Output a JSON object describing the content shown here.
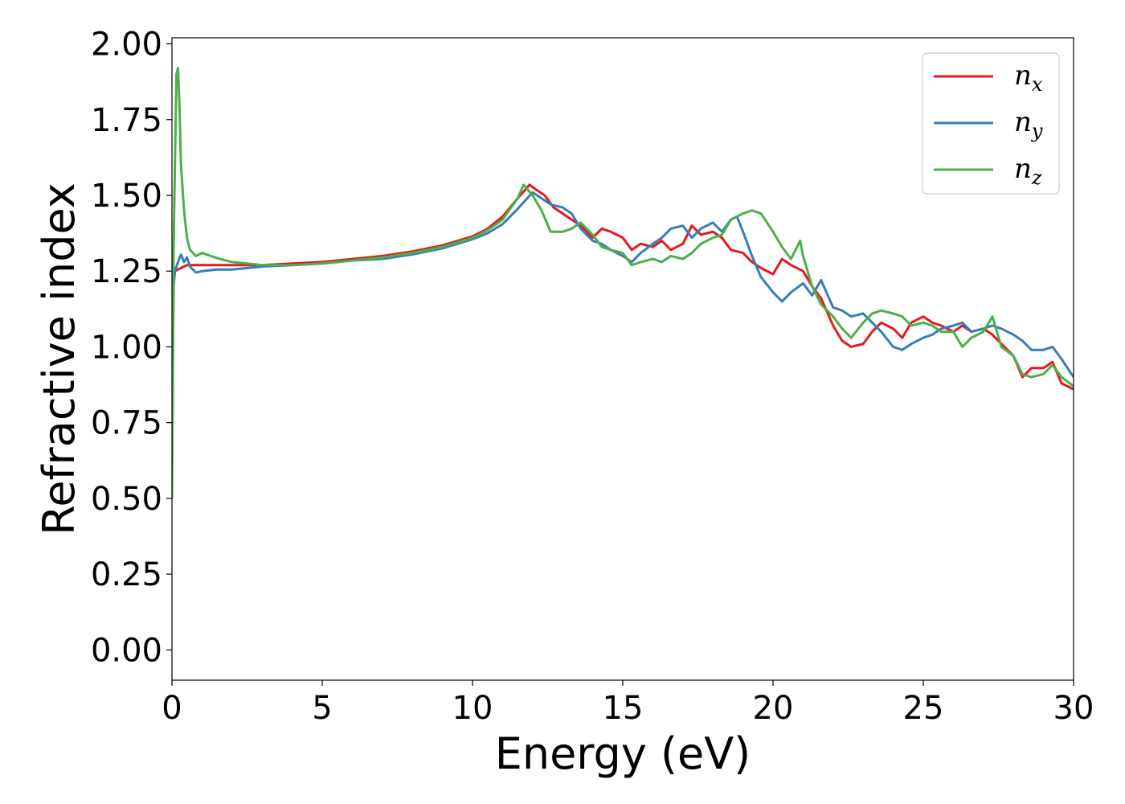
{
  "chart_data": {
    "type": "line",
    "xlabel": "Energy (eV)",
    "ylabel": "Refractive index",
    "xlim": [
      0,
      30
    ],
    "ylim": [
      -0.1,
      2.02
    ],
    "xticks": [
      0,
      5,
      10,
      15,
      20,
      25,
      30
    ],
    "xtick_labels": [
      "0",
      "5",
      "10",
      "15",
      "20",
      "25",
      "30"
    ],
    "yticks": [
      0,
      0.25,
      0.5,
      0.75,
      1.0,
      1.25,
      1.5,
      1.75,
      2.0
    ],
    "ytick_labels": [
      "0.00",
      "0.25",
      "0.50",
      "0.75",
      "1.00",
      "1.25",
      "1.50",
      "1.75",
      "2.00"
    ],
    "grid": false,
    "legend_position": "top-right",
    "series": [
      {
        "name": "n",
        "subscript": "x",
        "color": "#e41a1c",
        "x": [
          0,
          0.05,
          0.1,
          0.3,
          0.5,
          1,
          2,
          3,
          4,
          5,
          6,
          7,
          8,
          9,
          10,
          10.5,
          11,
          11.5,
          11.9,
          12.1,
          12.4,
          12.7,
          13,
          13.3,
          13.6,
          14,
          14.3,
          14.6,
          15,
          15.3,
          15.6,
          16,
          16.3,
          16.6,
          17,
          17.3,
          17.6,
          18,
          18.3,
          18.6,
          19,
          19.3,
          19.6,
          20,
          20.3,
          20.6,
          21,
          21.3,
          21.6,
          22,
          22.3,
          22.6,
          23,
          23.3,
          23.6,
          24,
          24.3,
          24.6,
          25,
          25.3,
          25.6,
          26,
          26.3,
          26.6,
          27,
          27.3,
          27.6,
          28,
          28.3,
          28.6,
          29,
          29.3,
          29.6,
          30
        ],
        "y": [
          0.6,
          1.2,
          1.25,
          1.26,
          1.27,
          1.27,
          1.27,
          1.27,
          1.275,
          1.28,
          1.29,
          1.3,
          1.315,
          1.335,
          1.365,
          1.39,
          1.43,
          1.49,
          1.535,
          1.52,
          1.5,
          1.46,
          1.44,
          1.42,
          1.4,
          1.36,
          1.39,
          1.38,
          1.36,
          1.32,
          1.34,
          1.33,
          1.35,
          1.32,
          1.34,
          1.4,
          1.37,
          1.38,
          1.36,
          1.32,
          1.31,
          1.28,
          1.26,
          1.24,
          1.29,
          1.27,
          1.25,
          1.2,
          1.16,
          1.07,
          1.02,
          1.0,
          1.01,
          1.05,
          1.08,
          1.06,
          1.03,
          1.08,
          1.1,
          1.08,
          1.07,
          1.05,
          1.07,
          1.05,
          1.06,
          1.04,
          1.01,
          0.97,
          0.9,
          0.93,
          0.93,
          0.95,
          0.88,
          0.86
        ]
      },
      {
        "name": "n",
        "subscript": "y",
        "color": "#377eb8",
        "x": [
          0,
          0.05,
          0.1,
          0.2,
          0.3,
          0.4,
          0.5,
          0.6,
          0.8,
          1,
          1.5,
          2,
          2.5,
          3,
          4,
          5,
          6,
          7,
          8,
          9,
          10,
          10.5,
          11,
          11.5,
          12,
          12.3,
          12.6,
          13,
          13.3,
          13.6,
          14,
          14.3,
          14.6,
          15,
          15.3,
          15.6,
          16,
          16.3,
          16.6,
          17,
          17.3,
          17.6,
          18,
          18.3,
          18.6,
          18.8,
          19,
          19.3,
          19.6,
          20,
          20.3,
          20.6,
          21,
          21.3,
          21.6,
          22,
          22.3,
          22.6,
          23,
          23.3,
          23.6,
          24,
          24.3,
          24.6,
          25,
          25.3,
          25.6,
          26,
          26.3,
          26.6,
          27,
          27.3,
          27.6,
          28,
          28.3,
          28.6,
          29,
          29.3,
          29.6,
          30
        ],
        "y": [
          0.6,
          1.2,
          1.25,
          1.28,
          1.305,
          1.28,
          1.295,
          1.265,
          1.245,
          1.25,
          1.255,
          1.255,
          1.26,
          1.265,
          1.27,
          1.275,
          1.285,
          1.29,
          1.305,
          1.325,
          1.355,
          1.375,
          1.405,
          1.455,
          1.51,
          1.49,
          1.47,
          1.46,
          1.44,
          1.39,
          1.35,
          1.34,
          1.32,
          1.3,
          1.28,
          1.31,
          1.34,
          1.36,
          1.39,
          1.4,
          1.36,
          1.39,
          1.41,
          1.38,
          1.42,
          1.43,
          1.38,
          1.3,
          1.23,
          1.18,
          1.15,
          1.18,
          1.21,
          1.17,
          1.22,
          1.13,
          1.12,
          1.1,
          1.11,
          1.08,
          1.05,
          1.0,
          0.99,
          1.01,
          1.03,
          1.04,
          1.06,
          1.07,
          1.08,
          1.05,
          1.06,
          1.07,
          1.06,
          1.04,
          1.02,
          0.99,
          0.99,
          1.0,
          0.96,
          0.9
        ]
      },
      {
        "name": "n",
        "subscript": "z",
        "color": "#4daf4a",
        "x": [
          0,
          0.05,
          0.1,
          0.15,
          0.2,
          0.25,
          0.3,
          0.4,
          0.5,
          0.6,
          0.8,
          1,
          1.3,
          1.6,
          2,
          2.5,
          3,
          4,
          5,
          6,
          7,
          8,
          9,
          10,
          10.5,
          11,
          11.5,
          11.7,
          12,
          12.3,
          12.6,
          13,
          13.3,
          13.6,
          14,
          14.3,
          14.6,
          15,
          15.3,
          15.6,
          16,
          16.3,
          16.6,
          17,
          17.3,
          17.6,
          18,
          18.3,
          18.6,
          19,
          19.3,
          19.6,
          20,
          20.3,
          20.6,
          20.9,
          21,
          21.3,
          21.6,
          22,
          22.3,
          22.6,
          23,
          23.3,
          23.6,
          24,
          24.3,
          24.6,
          25,
          25.3,
          25.6,
          26,
          26.3,
          26.6,
          27,
          27.3,
          27.6,
          28,
          28.3,
          28.6,
          29,
          29.3,
          29.6,
          30
        ],
        "y": [
          0.5,
          1.3,
          1.6,
          1.9,
          1.92,
          1.8,
          1.6,
          1.45,
          1.36,
          1.32,
          1.3,
          1.31,
          1.3,
          1.29,
          1.28,
          1.275,
          1.27,
          1.27,
          1.275,
          1.285,
          1.295,
          1.31,
          1.33,
          1.36,
          1.385,
          1.42,
          1.49,
          1.535,
          1.5,
          1.45,
          1.38,
          1.38,
          1.39,
          1.41,
          1.37,
          1.33,
          1.32,
          1.31,
          1.27,
          1.28,
          1.29,
          1.28,
          1.3,
          1.29,
          1.31,
          1.34,
          1.36,
          1.37,
          1.42,
          1.44,
          1.45,
          1.44,
          1.38,
          1.33,
          1.29,
          1.35,
          1.3,
          1.2,
          1.14,
          1.1,
          1.06,
          1.03,
          1.08,
          1.11,
          1.12,
          1.11,
          1.1,
          1.07,
          1.08,
          1.07,
          1.05,
          1.05,
          1.0,
          1.03,
          1.05,
          1.1,
          1.0,
          0.97,
          0.91,
          0.9,
          0.91,
          0.94,
          0.9,
          0.87
        ]
      }
    ]
  }
}
